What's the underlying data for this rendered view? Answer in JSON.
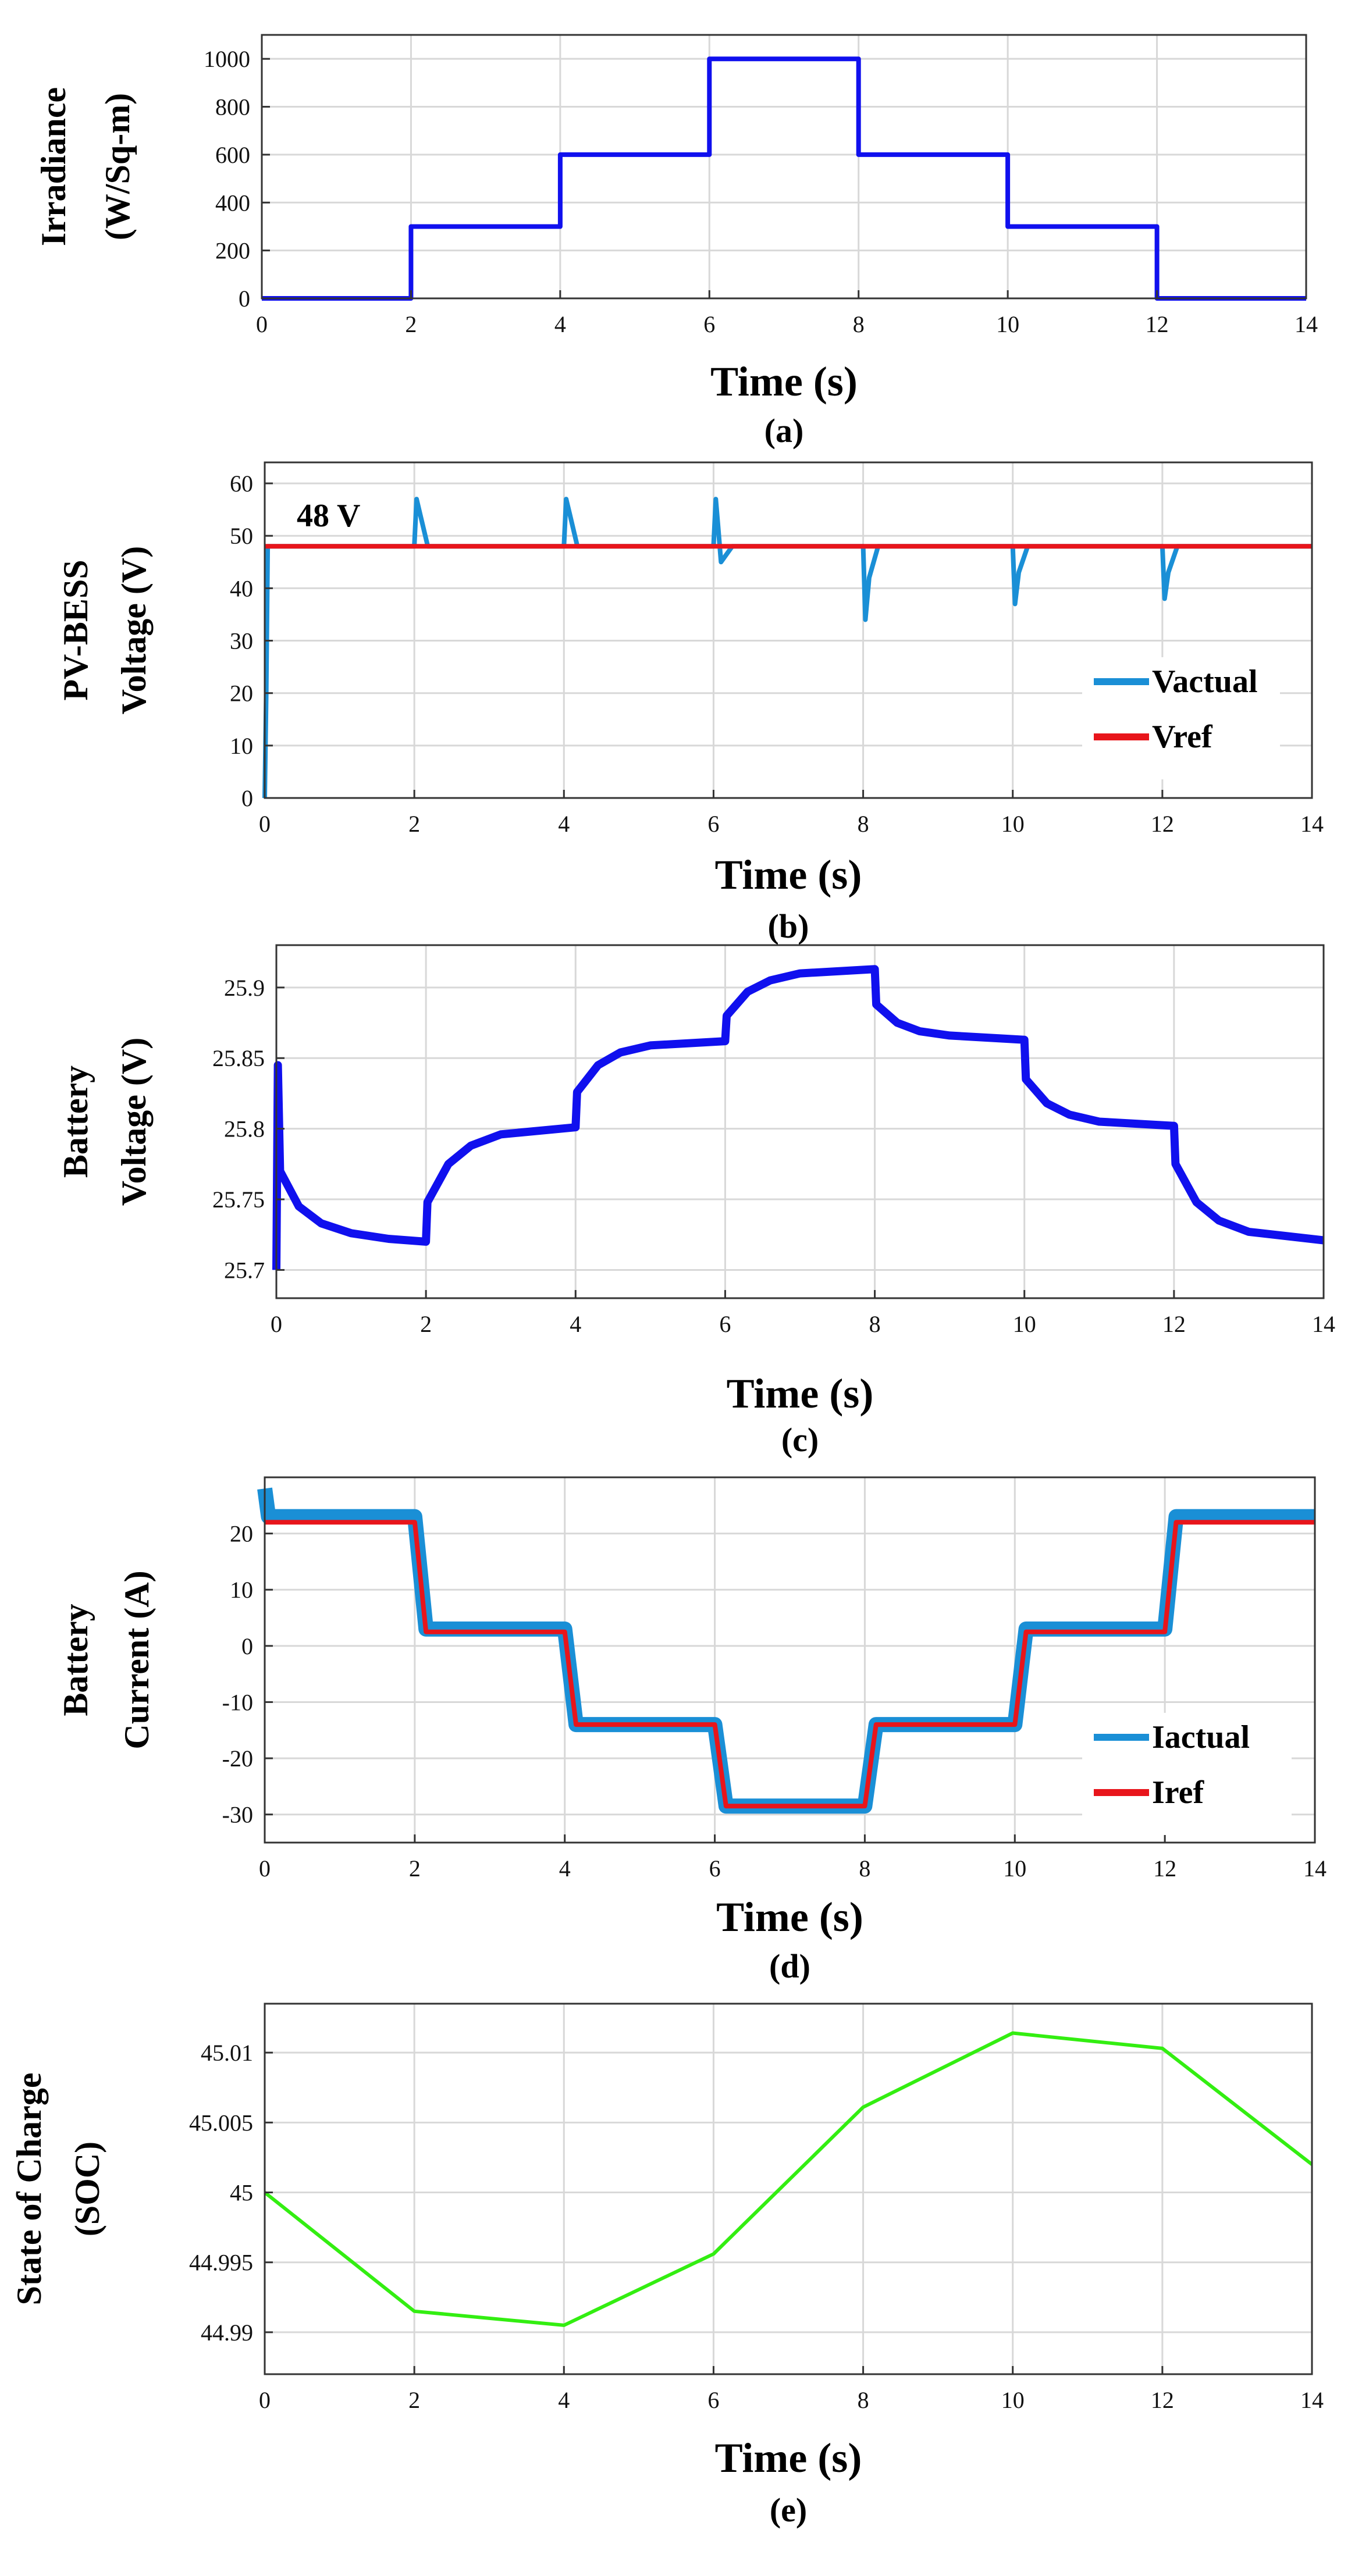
{
  "colors": {
    "blue_line": "#1010ee",
    "cyan_line": "#1a8fd6",
    "red_line": "#e8151b",
    "green_line": "#33ee11",
    "grid": "#d8d8d8",
    "axis": "#333333"
  },
  "chart_data": [
    {
      "id": "a",
      "type": "line",
      "caption": "(a)",
      "xlabel": "Time (s)",
      "ylabel": [
        "Irradiance",
        "(W/Sq-m)"
      ],
      "xlim": [
        0,
        14
      ],
      "ylim": [
        0,
        1100
      ],
      "xticks": [
        0,
        2,
        4,
        6,
        8,
        10,
        12,
        14
      ],
      "yticks": [
        0,
        200,
        400,
        600,
        800,
        1000
      ],
      "series": [
        {
          "name": "Irradiance",
          "color": "#1010ee",
          "x": [
            0,
            2,
            2,
            4,
            4,
            6,
            6,
            8,
            8,
            10,
            10,
            12,
            12,
            14
          ],
          "y": [
            0,
            0,
            300,
            300,
            600,
            600,
            1000,
            1000,
            600,
            600,
            300,
            300,
            0,
            0
          ]
        }
      ]
    },
    {
      "id": "b",
      "type": "line",
      "caption": "(b)",
      "xlabel": "Time (s)",
      "ylabel": [
        "PV-BESS",
        "Voltage (V)"
      ],
      "xlim": [
        0,
        14
      ],
      "ylim": [
        0,
        64
      ],
      "xticks": [
        0,
        2,
        4,
        6,
        8,
        10,
        12,
        14
      ],
      "yticks": [
        0,
        10,
        20,
        30,
        40,
        50,
        60
      ],
      "annotation": "48 V",
      "series": [
        {
          "name": "Vactual",
          "color": "#1a8fd6",
          "x": [
            0,
            0.02,
            0.04,
            0.1,
            2,
            2.03,
            2.08,
            2.18,
            4,
            4.03,
            4.08,
            4.18,
            6,
            6.03,
            6.06,
            6.1,
            6.25,
            8,
            8.03,
            8.08,
            8.2,
            10,
            10.03,
            10.08,
            10.2,
            12,
            12.03,
            12.08,
            12.2,
            14
          ],
          "y": [
            0,
            20,
            48,
            48,
            48,
            57,
            54,
            48,
            48,
            57,
            54,
            48,
            48,
            57,
            52,
            45,
            48,
            48,
            34,
            42,
            48,
            48,
            37,
            43,
            48,
            48,
            38,
            43,
            48,
            48
          ]
        },
        {
          "name": "Vref",
          "color": "#e8151b",
          "x": [
            0,
            14
          ],
          "y": [
            48,
            48
          ]
        }
      ]
    },
    {
      "id": "c",
      "type": "line",
      "caption": "(c)",
      "xlabel": "Time (s)",
      "ylabel": [
        "Battery",
        "Voltage (V)"
      ],
      "xlim": [
        0,
        14
      ],
      "ylim": [
        25.68,
        25.93
      ],
      "xticks": [
        0,
        2,
        4,
        6,
        8,
        10,
        12,
        14
      ],
      "yticks": [
        25.7,
        25.75,
        25.8,
        25.85,
        25.9
      ],
      "series": [
        {
          "name": "Battery voltage",
          "color": "#1010ee",
          "x": [
            0,
            0.02,
            0.05,
            0.3,
            0.6,
            1,
            1.5,
            2,
            2.02,
            2.3,
            2.6,
            3,
            4,
            4.02,
            4.3,
            4.6,
            5,
            6,
            6.02,
            6.3,
            6.6,
            7,
            8,
            8.02,
            8.3,
            8.6,
            9,
            10,
            10.02,
            10.3,
            10.6,
            11,
            12,
            12.02,
            12.3,
            12.6,
            13,
            14
          ],
          "y": [
            25.7,
            25.845,
            25.77,
            25.745,
            25.733,
            25.726,
            25.722,
            25.72,
            25.748,
            25.775,
            25.788,
            25.796,
            25.801,
            25.826,
            25.845,
            25.854,
            25.859,
            25.862,
            25.88,
            25.897,
            25.905,
            25.91,
            25.913,
            25.888,
            25.875,
            25.869,
            25.866,
            25.863,
            25.835,
            25.818,
            25.81,
            25.805,
            25.802,
            25.775,
            25.748,
            25.735,
            25.727,
            25.721
          ]
        }
      ]
    },
    {
      "id": "d",
      "type": "line",
      "caption": "(d)",
      "xlabel": "Time (s)",
      "ylabel": [
        "Battery",
        "Current (A)"
      ],
      "xlim": [
        0,
        14
      ],
      "ylim": [
        -35,
        30
      ],
      "xticks": [
        0,
        2,
        4,
        6,
        8,
        10,
        12,
        14
      ],
      "yticks": [
        -30,
        -20,
        -10,
        0,
        10,
        20
      ],
      "series": [
        {
          "name": "Iactual",
          "color": "#1a8fd6",
          "x": [
            0,
            0.05,
            0.1,
            2,
            2.15,
            4,
            4.15,
            6,
            6.15,
            8,
            8.15,
            10,
            10.15,
            12,
            12.15,
            14
          ],
          "y": [
            28,
            23,
            23,
            23,
            3,
            3,
            -14,
            -14,
            -28.5,
            -28.5,
            -14,
            -14,
            3,
            3,
            23,
            23
          ]
        },
        {
          "name": "Iref",
          "color": "#e8151b",
          "x": [
            0,
            2,
            2.15,
            4,
            4.15,
            6,
            6.15,
            8,
            8.15,
            10,
            10.15,
            12,
            12.15,
            14
          ],
          "y": [
            22,
            22,
            2.5,
            2.5,
            -14,
            -14,
            -28.5,
            -28.5,
            -14,
            -14,
            2.5,
            2.5,
            22,
            22
          ]
        }
      ]
    },
    {
      "id": "e",
      "type": "line",
      "caption": "(e)",
      "xlabel": "Time (s)",
      "ylabel": [
        "State of Charge",
        "(SOC)"
      ],
      "xlim": [
        0,
        14
      ],
      "ylim": [
        44.987,
        45.0135
      ],
      "xticks": [
        0,
        2,
        4,
        6,
        8,
        10,
        12,
        14
      ],
      "yticks": [
        44.99,
        44.995,
        45,
        45.005,
        45.01
      ],
      "series": [
        {
          "name": "SOC",
          "color": "#33ee11",
          "x": [
            0,
            2,
            4,
            6,
            8,
            10,
            12,
            14
          ],
          "y": [
            45.0,
            44.9915,
            44.9905,
            44.9956,
            45.0061,
            45.0114,
            45.0103,
            45.002
          ]
        }
      ]
    }
  ]
}
